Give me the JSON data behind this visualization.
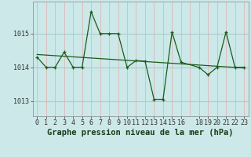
{
  "title": "Graphe pression niveau de la mer (hPa)",
  "bg_color": "#cce8e8",
  "line_color": "#1a5c1a",
  "hgrid_color": "#aacccc",
  "vgrid_color": "#ddb8b8",
  "x_values": [
    0,
    1,
    2,
    3,
    4,
    5,
    6,
    7,
    8,
    9,
    10,
    11,
    12,
    13,
    14,
    15,
    16,
    18,
    19,
    20,
    21,
    22,
    23
  ],
  "y_values": [
    1014.3,
    1014.0,
    1014.0,
    1014.45,
    1014.0,
    1014.0,
    1015.65,
    1015.0,
    1015.0,
    1015.0,
    1014.0,
    1014.2,
    1014.18,
    1013.05,
    1013.05,
    1015.05,
    1014.15,
    1014.0,
    1013.78,
    1014.0,
    1015.05,
    1014.0,
    1014.0
  ],
  "trend_x": [
    0,
    23
  ],
  "trend_y": [
    1014.38,
    1013.98
  ],
  "ylim": [
    1012.55,
    1015.95
  ],
  "yticks": [
    1013,
    1014,
    1015
  ],
  "xtick_positions": [
    0,
    1,
    2,
    3,
    4,
    5,
    6,
    7,
    8,
    9,
    10,
    11,
    12,
    13,
    14,
    15,
    16,
    18,
    19,
    20,
    21,
    22,
    23
  ],
  "xtick_labels": [
    "0",
    "1",
    "2",
    "3",
    "4",
    "5",
    "6",
    "7",
    "8",
    "9",
    "10",
    "11",
    "12",
    "13",
    "14",
    "15",
    "16",
    "18",
    "19",
    "20",
    "21",
    "22",
    "23"
  ],
  "title_fontsize": 7.5,
  "tick_fontsize": 6.0
}
